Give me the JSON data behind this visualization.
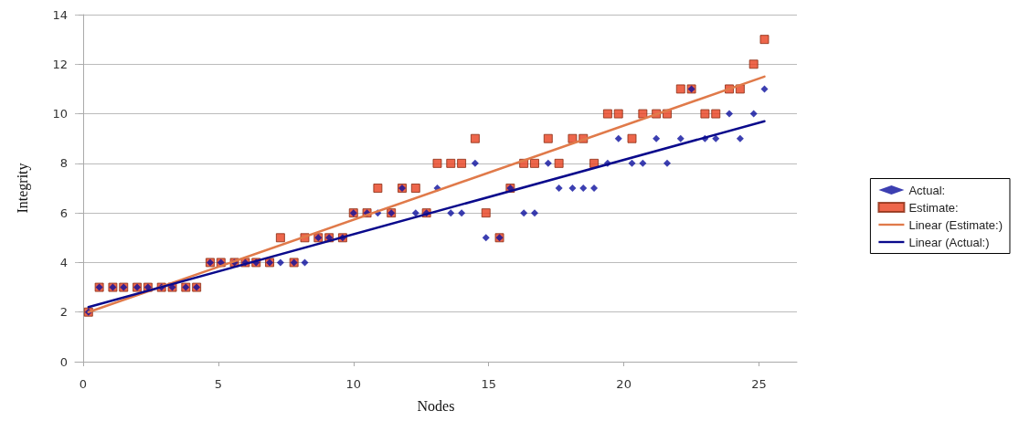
{
  "chart_data": {
    "type": "scatter",
    "xlabel": "Nodes",
    "ylabel": "Integrity",
    "xlim": [
      -0.3,
      26.4
    ],
    "xticks": [
      0,
      5,
      10,
      15,
      20,
      25
    ],
    "ylim": [
      0,
      14
    ],
    "yticks": [
      0,
      2,
      4,
      6,
      8,
      10,
      12,
      14
    ],
    "grid": "y",
    "legend": "right",
    "series": [
      {
        "name": "Actual:",
        "marker": "diamond",
        "color": "#0b0f9e",
        "x": [
          0.2,
          0.6,
          1.1,
          1.5,
          2.0,
          2.4,
          2.9,
          3.3,
          3.8,
          4.2,
          4.7,
          5.1,
          5.6,
          6.0,
          6.4,
          6.9,
          7.3,
          7.8,
          8.2,
          8.7,
          9.1,
          9.6,
          10.0,
          10.5,
          10.9,
          11.4,
          11.8,
          12.3,
          12.7,
          13.1,
          13.6,
          14.0,
          14.5,
          14.9,
          15.4,
          15.8,
          16.3,
          16.7,
          17.2,
          17.6,
          18.1,
          18.5,
          18.9,
          19.4,
          19.8,
          20.3,
          20.7,
          21.2,
          21.6,
          22.1,
          22.5,
          23.0,
          23.4,
          23.9,
          24.3,
          24.8,
          25.2
        ],
        "values": [
          2,
          3,
          3,
          3,
          3,
          3,
          3,
          3,
          3,
          3,
          4,
          4,
          4,
          4,
          4,
          4,
          4,
          4,
          4,
          5,
          5,
          5,
          6,
          6,
          6,
          6,
          7,
          6,
          6,
          7,
          6,
          6,
          8,
          5,
          5,
          7,
          6,
          6,
          8,
          7,
          7,
          7,
          7,
          8,
          9,
          8,
          8,
          9,
          8,
          9,
          11,
          9,
          9,
          10,
          9,
          10,
          11
        ]
      },
      {
        "name": "Estimate:",
        "marker": "square",
        "color": "#e8401e",
        "x": [
          0.2,
          0.6,
          1.1,
          1.5,
          2.0,
          2.4,
          2.9,
          3.3,
          3.8,
          4.2,
          4.7,
          5.1,
          5.6,
          6.0,
          6.4,
          6.9,
          7.3,
          7.8,
          8.2,
          8.7,
          9.1,
          9.6,
          10.0,
          10.5,
          10.9,
          11.4,
          11.8,
          12.3,
          12.7,
          13.1,
          13.6,
          14.0,
          14.5,
          14.9,
          15.4,
          15.8,
          16.3,
          16.7,
          17.2,
          17.6,
          18.1,
          18.5,
          18.9,
          19.4,
          19.8,
          20.3,
          20.7,
          21.2,
          21.6,
          22.1,
          22.5,
          23.0,
          23.4,
          23.9,
          24.3,
          24.8,
          25.2
        ],
        "values": [
          2,
          3,
          3,
          3,
          3,
          3,
          3,
          3,
          3,
          3,
          4,
          4,
          4,
          4,
          4,
          4,
          5,
          4,
          5,
          5,
          5,
          5,
          6,
          6,
          7,
          6,
          7,
          7,
          6,
          8,
          8,
          8,
          9,
          6,
          5,
          7,
          8,
          8,
          9,
          8,
          9,
          9,
          8,
          10,
          10,
          9,
          10,
          10,
          10,
          11,
          11,
          10,
          10,
          11,
          11,
          12,
          13
        ]
      },
      {
        "name": "Linear (Estimate:)",
        "type": "line",
        "marker": "none",
        "color": "#e07a4a",
        "x": [
          0.2,
          25.2
        ],
        "values": [
          2.0,
          11.5
        ]
      },
      {
        "name": "Linear (Actual:)",
        "type": "line",
        "marker": "none",
        "color": "#0a0a8c",
        "x": [
          0.2,
          25.2
        ],
        "values": [
          2.2,
          9.7
        ]
      }
    ]
  }
}
